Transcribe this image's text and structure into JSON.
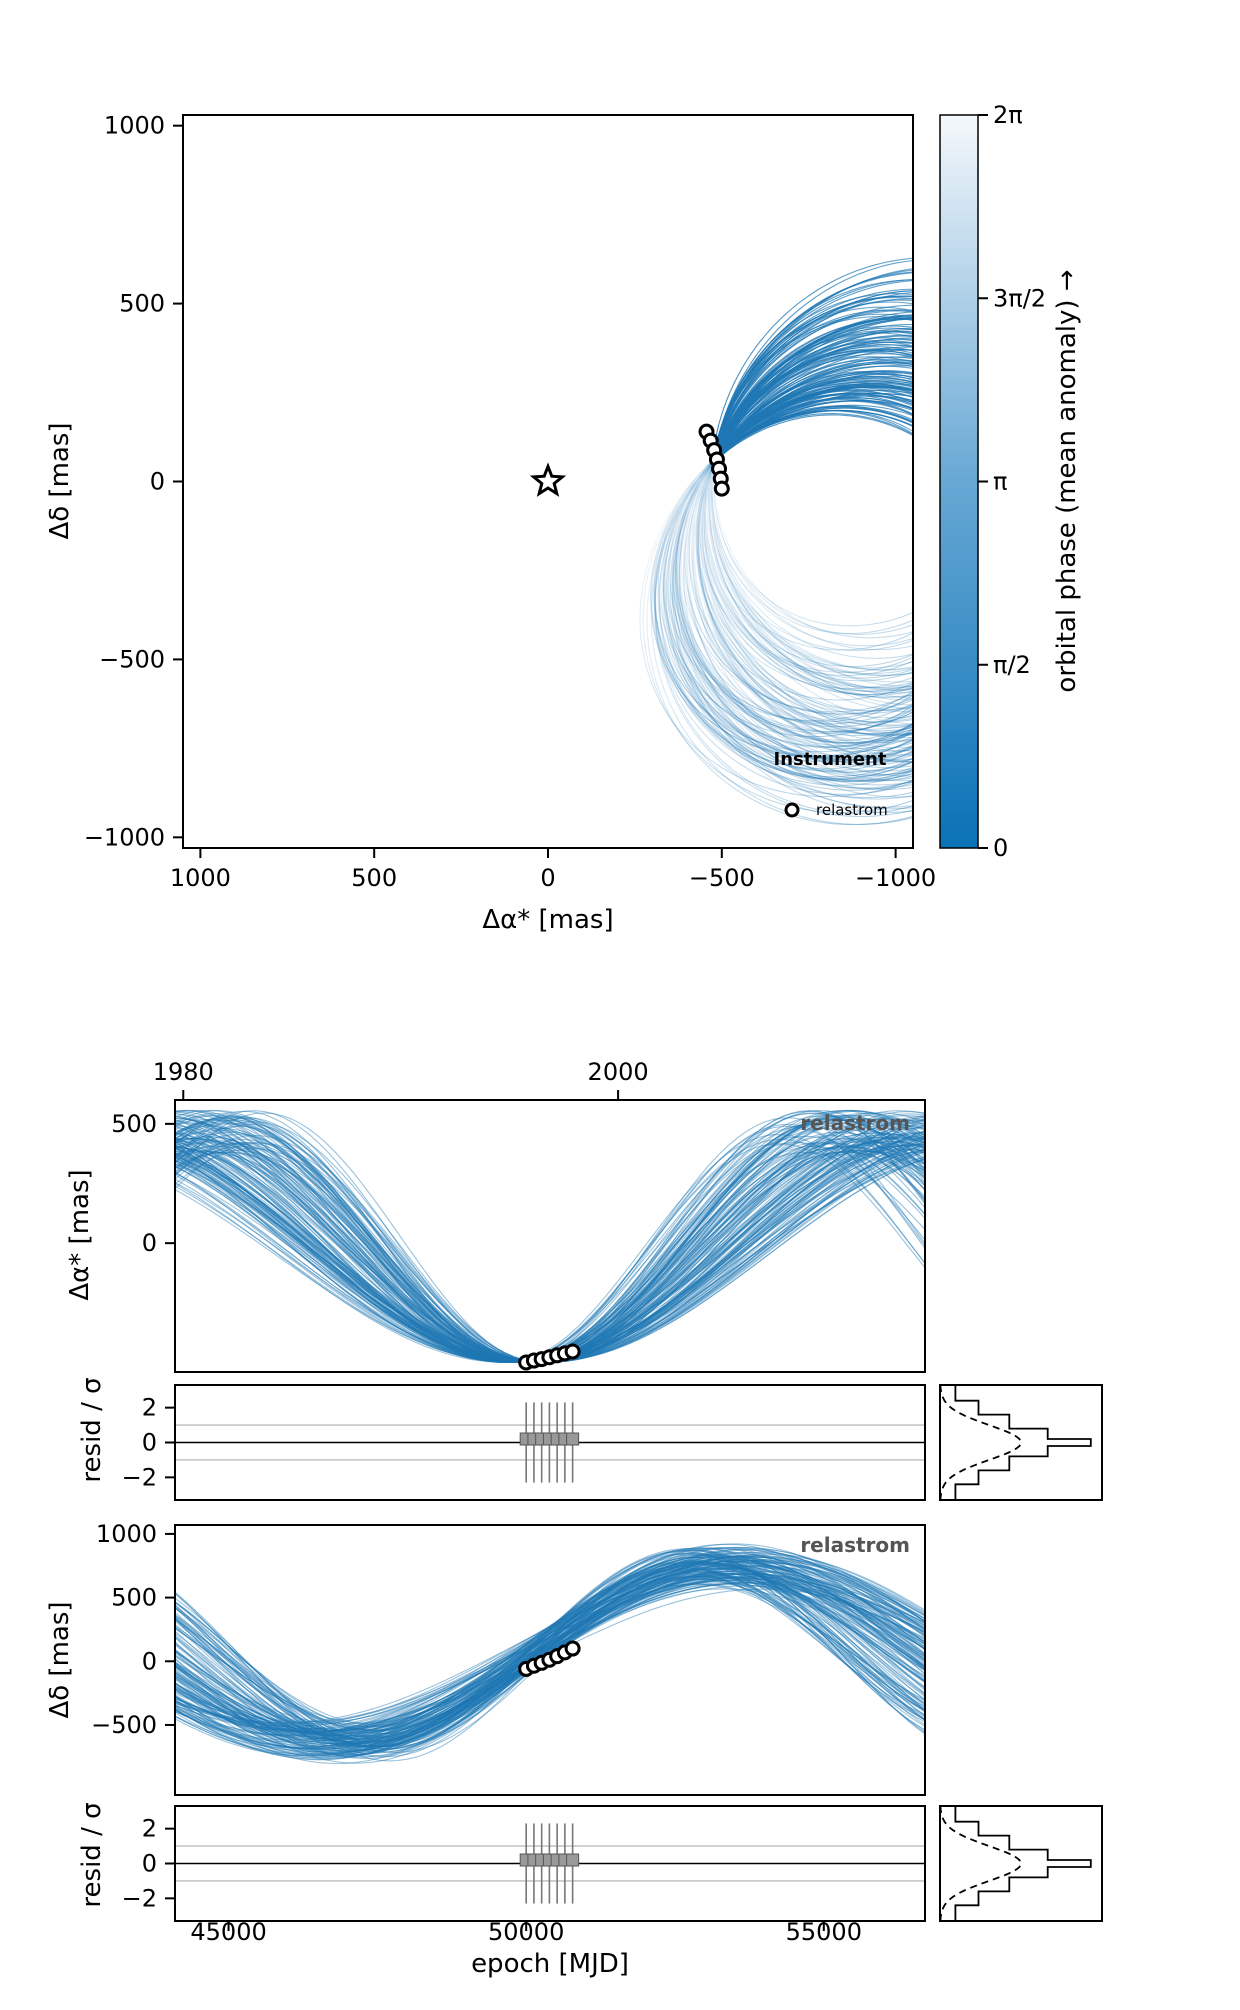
{
  "chart_data": [
    {
      "type": "line",
      "subtype": "orbit-sky-plane",
      "xlabel": "Δα* [mas]",
      "ylabel": "Δδ [mas]",
      "xlim": [
        1050,
        -1050
      ],
      "ylim": [
        -1030,
        1030
      ],
      "xticks": [
        1000,
        500,
        0,
        -500,
        -1000
      ],
      "xtick_labels": [
        "1000",
        "500",
        "0",
        "−500",
        "−1000"
      ],
      "yticks": [
        1000,
        500,
        0,
        -500,
        -1000
      ],
      "ytick_labels": [
        "1000",
        "500",
        "0",
        "−500",
        "−1000"
      ],
      "grid": false,
      "host_star": {
        "x": 0,
        "y": 0
      },
      "orbit_family": {
        "count": 150,
        "semi_major_axis_range": [
          470,
          640
        ],
        "eccentricity_range": [
          0.05,
          0.5
        ],
        "color": "#1f77b4"
      },
      "observations": {
        "x": [
          -456,
          -468,
          -478,
          -486,
          -492,
          -497,
          -500
        ],
        "y": [
          140,
          115,
          88,
          62,
          36,
          8,
          -20
        ]
      },
      "legend": {
        "title": "Instrument",
        "entries": [
          "relastrom"
        ],
        "position": "bottom-right"
      },
      "colorbar": {
        "label": "orbital phase (mean anomaly) →",
        "ticks": [
          "0",
          "π/2",
          "π",
          "3π/2",
          "2π"
        ],
        "color_low": "#0a72b6",
        "color_high": "#f5f8fb"
      }
    },
    {
      "type": "line",
      "subtype": "ra-offset-vs-epoch",
      "ylabel": "Δα* [mas]",
      "xlim": [
        44100,
        56700
      ],
      "ylim": [
        -540,
        600
      ],
      "yticks": [
        500,
        0
      ],
      "ytick_labels": [
        "500",
        "0"
      ],
      "top_axis": {
        "ticks": [
          1980,
          2000
        ],
        "tick_labels": [
          "1980",
          "2000"
        ],
        "years_mjd": [
          44239,
          51544
        ]
      },
      "instrument_label": "relastrom",
      "observations": {
        "epoch_mjd": [
          50000,
          50130,
          50260,
          50390,
          50520,
          50650,
          50780
        ],
        "value": [
          -500,
          -492,
          -486,
          -478,
          -470,
          -462,
          -454
        ]
      },
      "residuals": {
        "ylabel": "resid / σ",
        "yticks": [
          2,
          0,
          -2
        ],
        "ytick_labels": [
          "2",
          "0",
          "−2"
        ],
        "ylim": [
          -3.3,
          3.3
        ],
        "reference_lines": [
          1,
          0,
          -1
        ]
      }
    },
    {
      "type": "line",
      "subtype": "dec-offset-vs-epoch",
      "ylabel": "Δδ [mas]",
      "xlabel": "epoch [MJD]",
      "xlim": [
        44100,
        56700
      ],
      "ylim": [
        -1050,
        1070
      ],
      "xticks": [
        45000,
        50000,
        55000
      ],
      "xtick_labels": [
        "45000",
        "50000",
        "55000"
      ],
      "yticks": [
        1000,
        500,
        0,
        -500
      ],
      "ytick_labels": [
        "1000",
        "500",
        "0",
        "−500"
      ],
      "instrument_label": "relastrom",
      "observations": {
        "epoch_mjd": [
          50000,
          50130,
          50260,
          50390,
          50520,
          50650,
          50780
        ],
        "value": [
          -60,
          -35,
          -12,
          12,
          40,
          70,
          100
        ]
      },
      "residuals": {
        "ylabel": "resid / σ",
        "yticks": [
          2,
          0,
          -2
        ],
        "ytick_labels": [
          "2",
          "0",
          "−2"
        ],
        "ylim": [
          -3.3,
          3.3
        ],
        "reference_lines": [
          1,
          0,
          -1
        ]
      }
    }
  ]
}
